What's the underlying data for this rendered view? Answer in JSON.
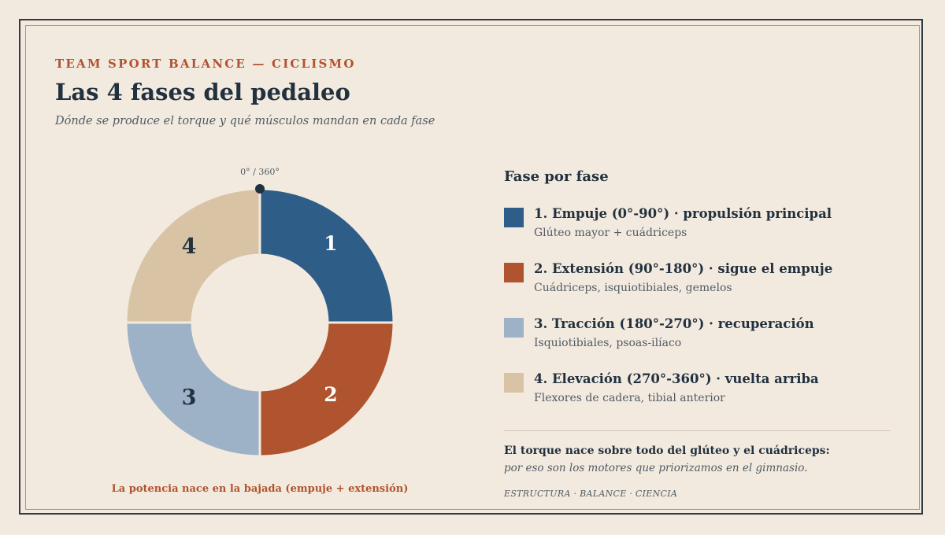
{
  "header": {
    "eyebrow": "TEAM SPORT BALANCE — CICLISMO",
    "title": "Las 4 fases del pedaleo",
    "subtitle": "Dónde se produce el torque y qué músculos mandan en cada fase"
  },
  "diagram": {
    "top_marker_label": "0° / 360°",
    "caption": "La potencia nace en la bajada (empuje + extensión)",
    "segments": [
      {
        "number": "1",
        "color": "#2e5d87",
        "number_color": "#ffffff"
      },
      {
        "number": "2",
        "color": "#b0532f",
        "number_color": "#ffffff"
      },
      {
        "number": "3",
        "color": "#9db2c6",
        "number_color": "#22313f"
      },
      {
        "number": "4",
        "color": "#d8c3a5",
        "number_color": "#22313f"
      }
    ]
  },
  "side": {
    "title": "Fase por fase",
    "phases": [
      {
        "label": "1. Empuje (0°-90°) · propulsión principal",
        "desc": "Glúteo mayor + cuádriceps",
        "color": "#2e5d87"
      },
      {
        "label": "2. Extensión (90°-180°) · sigue el empuje",
        "desc": "Cuádriceps, isquiotibiales, gemelos",
        "color": "#b0532f"
      },
      {
        "label": "3. Tracción (180°-270°) · recuperación",
        "desc": "Isquiotibiales, psoas-ilíaco",
        "color": "#9db2c6"
      },
      {
        "label": "4. Elevación (270°-360°) · vuelta arriba",
        "desc": "Flexores de cadera, tibial anterior",
        "color": "#d8c3a5"
      }
    ],
    "note_strong": "El torque nace sobre todo del glúteo y el cuádriceps:",
    "note_italic": "por eso son los motores que priorizamos en el gimnasio.",
    "footer": "ESTRUCTURA · BALANCE · CIENCIA"
  }
}
